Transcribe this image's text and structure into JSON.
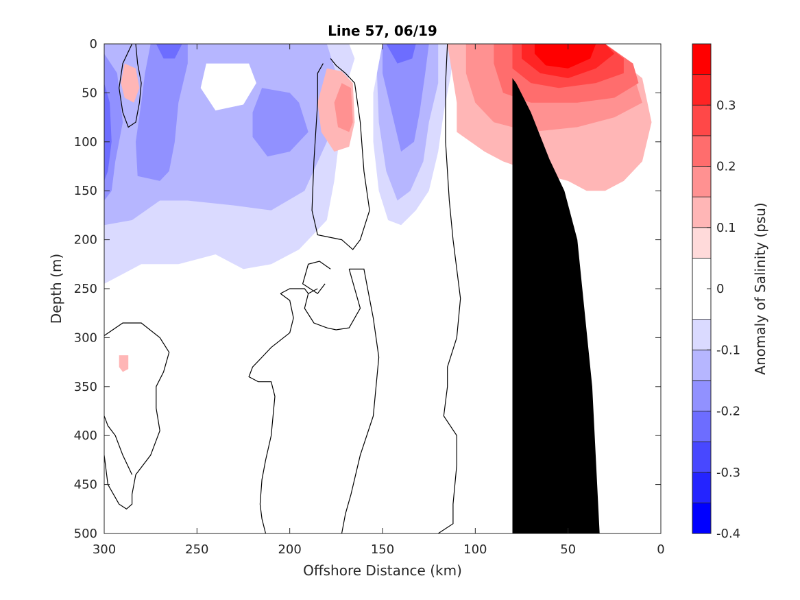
{
  "chart_data": {
    "type": "heatmap",
    "subtype": "filled-contour-section",
    "title": "Line 57, 06/19",
    "xlabel": "Offshore Distance (km)",
    "ylabel": "Depth (m)",
    "xlim": [
      300,
      0
    ],
    "x_reversed": true,
    "ylim": [
      0,
      500
    ],
    "y_reversed": true,
    "x_ticks": [
      300,
      250,
      200,
      150,
      100,
      50,
      0
    ],
    "y_ticks": [
      0,
      50,
      100,
      150,
      200,
      250,
      300,
      350,
      400,
      450,
      500
    ],
    "grid": false,
    "zero_contour_line_color": "#000000",
    "bathymetry_color": "#000000",
    "bathymetry": [
      [
        33,
        500
      ],
      [
        37,
        350
      ],
      [
        45,
        200
      ],
      [
        52,
        150
      ],
      [
        60,
        118
      ],
      [
        70,
        70
      ],
      [
        78,
        40
      ],
      [
        80,
        35
      ],
      [
        80,
        500
      ]
    ],
    "colorbar": {
      "label": "Anomaly of Salinity (psu)",
      "ticks": [
        -0.4,
        -0.3,
        -0.2,
        -0.1,
        0,
        0.1,
        0.2,
        0.3
      ],
      "levels": [
        -0.4,
        -0.35,
        -0.3,
        -0.25,
        -0.2,
        -0.15,
        -0.1,
        -0.05,
        0.05,
        0.1,
        0.15,
        0.2,
        0.25,
        0.3,
        0.35,
        0.4
      ],
      "colors": [
        "#0000ff",
        "#2424ff",
        "#4848ff",
        "#6d6dff",
        "#9191ff",
        "#b6b6ff",
        "#dadaff",
        "#ffffff",
        "#ffdada",
        "#ffb6b6",
        "#ff9191",
        "#ff6d6d",
        "#ff4848",
        "#ff2424",
        "#ff0000"
      ]
    },
    "regions": [
      {
        "value": -0.1,
        "polygon": [
          [
            300,
            0
          ],
          [
            230,
            0
          ],
          [
            200,
            0
          ],
          [
            180,
            0
          ],
          [
            168,
            0
          ],
          [
            165,
            15
          ],
          [
            170,
            45
          ],
          [
            176,
            140
          ],
          [
            180,
            180
          ],
          [
            195,
            210
          ],
          [
            210,
            225
          ],
          [
            225,
            230
          ],
          [
            240,
            215
          ],
          [
            260,
            225
          ],
          [
            280,
            225
          ],
          [
            290,
            235
          ],
          [
            300,
            245
          ]
        ]
      },
      {
        "value": -0.1,
        "polygon": [
          [
            150,
            0
          ],
          [
            112,
            0
          ],
          [
            113,
            30
          ],
          [
            117,
            70
          ],
          [
            120,
            110
          ],
          [
            125,
            150
          ],
          [
            132,
            170
          ],
          [
            140,
            185
          ],
          [
            147,
            180
          ],
          [
            152,
            150
          ],
          [
            155,
            100
          ],
          [
            155,
            50
          ]
        ]
      },
      {
        "value": -0.15,
        "polygon": [
          [
            300,
            0
          ],
          [
            180,
            0
          ],
          [
            175,
            30
          ],
          [
            180,
            100
          ],
          [
            192,
            150
          ],
          [
            210,
            170
          ],
          [
            230,
            165
          ],
          [
            255,
            160
          ],
          [
            270,
            160
          ],
          [
            285,
            180
          ],
          [
            300,
            185
          ]
        ]
      },
      {
        "value": -0.15,
        "polygon": [
          [
            150,
            0
          ],
          [
            120,
            0
          ],
          [
            120,
            40
          ],
          [
            125,
            80
          ],
          [
            128,
            120
          ],
          [
            135,
            150
          ],
          [
            142,
            160
          ],
          [
            148,
            130
          ],
          [
            152,
            80
          ],
          [
            153,
            30
          ]
        ]
      },
      {
        "value": -0.2,
        "polygon": [
          [
            275,
            0
          ],
          [
            255,
            0
          ],
          [
            255,
            20
          ],
          [
            260,
            60
          ],
          [
            262,
            100
          ],
          [
            265,
            130
          ],
          [
            270,
            140
          ],
          [
            282,
            135
          ],
          [
            283,
            100
          ],
          [
            280,
            60
          ],
          [
            278,
            30
          ]
        ]
      },
      {
        "value": -0.2,
        "polygon": [
          [
            300,
            10
          ],
          [
            293,
            30
          ],
          [
            290,
            80
          ],
          [
            294,
            120
          ],
          [
            296,
            150
          ],
          [
            300,
            160
          ]
        ]
      },
      {
        "value": -0.2,
        "polygon": [
          [
            215,
            45
          ],
          [
            200,
            50
          ],
          [
            195,
            60
          ],
          [
            190,
            90
          ],
          [
            200,
            110
          ],
          [
            212,
            115
          ],
          [
            220,
            95
          ],
          [
            220,
            70
          ]
        ]
      },
      {
        "value": -0.2,
        "polygon": [
          [
            150,
            0
          ],
          [
            125,
            0
          ],
          [
            127,
            30
          ],
          [
            130,
            70
          ],
          [
            133,
            100
          ],
          [
            140,
            110
          ],
          [
            145,
            70
          ],
          [
            150,
            30
          ]
        ]
      },
      {
        "value": -0.25,
        "polygon": [
          [
            272,
            0
          ],
          [
            258,
            0
          ],
          [
            262,
            15
          ],
          [
            268,
            15
          ]
        ]
      },
      {
        "value": -0.25,
        "polygon": [
          [
            300,
            40
          ],
          [
            297,
            60
          ],
          [
            296,
            100
          ],
          [
            298,
            130
          ],
          [
            300,
            140
          ]
        ]
      },
      {
        "value": -0.25,
        "polygon": [
          [
            148,
            0
          ],
          [
            132,
            0
          ],
          [
            134,
            15
          ],
          [
            142,
            20
          ]
        ]
      },
      {
        "value": -0.05,
        "polygon": [
          [
            245,
            20
          ],
          [
            222,
            20
          ],
          [
            218,
            40
          ],
          [
            225,
            62
          ],
          [
            240,
            68
          ],
          [
            248,
            45
          ]
        ]
      },
      {
        "value": 0.1,
        "polygon": [
          [
            115,
            0
          ],
          [
            45,
            0
          ],
          [
            35,
            5
          ],
          [
            20,
            20
          ],
          [
            10,
            35
          ],
          [
            5,
            80
          ],
          [
            10,
            120
          ],
          [
            20,
            140
          ],
          [
            30,
            150
          ],
          [
            40,
            150
          ],
          [
            50,
            140
          ],
          [
            70,
            130
          ],
          [
            85,
            120
          ],
          [
            95,
            110
          ],
          [
            110,
            90
          ],
          [
            110,
            60
          ]
        ]
      },
      {
        "value": 0.1,
        "polygon": [
          [
            180,
            25
          ],
          [
            172,
            28
          ],
          [
            166,
            40
          ],
          [
            165,
            80
          ],
          [
            168,
            105
          ],
          [
            176,
            110
          ],
          [
            183,
            90
          ],
          [
            185,
            60
          ]
        ]
      },
      {
        "value": 0.1,
        "polygon": [
          [
            289,
            20
          ],
          [
            283,
            25
          ],
          [
            281,
            45
          ],
          [
            284,
            60
          ],
          [
            289,
            55
          ],
          [
            291,
            40
          ]
        ]
      },
      {
        "value": 0.1,
        "polygon": [
          [
            292,
            318
          ],
          [
            287,
            318
          ],
          [
            287,
            332
          ],
          [
            290,
            335
          ],
          [
            292,
            330
          ]
        ]
      },
      {
        "value": 0.15,
        "polygon": [
          [
            105,
            0
          ],
          [
            40,
            0
          ],
          [
            25,
            15
          ],
          [
            15,
            30
          ],
          [
            10,
            60
          ],
          [
            25,
            75
          ],
          [
            45,
            85
          ],
          [
            70,
            90
          ],
          [
            90,
            80
          ],
          [
            100,
            60
          ],
          [
            105,
            30
          ]
        ]
      },
      {
        "value": 0.15,
        "polygon": [
          [
            172,
            40
          ],
          [
            167,
            45
          ],
          [
            166,
            80
          ],
          [
            168,
            90
          ],
          [
            174,
            85
          ],
          [
            176,
            60
          ]
        ]
      },
      {
        "value": 0.2,
        "polygon": [
          [
            90,
            0
          ],
          [
            30,
            0
          ],
          [
            15,
            20
          ],
          [
            12,
            40
          ],
          [
            25,
            55
          ],
          [
            45,
            60
          ],
          [
            70,
            60
          ],
          [
            85,
            50
          ],
          [
            90,
            20
          ]
        ]
      },
      {
        "value": 0.25,
        "polygon": [
          [
            80,
            0
          ],
          [
            30,
            0
          ],
          [
            20,
            15
          ],
          [
            20,
            30
          ],
          [
            35,
            40
          ],
          [
            55,
            45
          ],
          [
            70,
            40
          ],
          [
            80,
            25
          ]
        ]
      },
      {
        "value": 0.3,
        "polygon": [
          [
            75,
            0
          ],
          [
            30,
            0
          ],
          [
            25,
            10
          ],
          [
            35,
            25
          ],
          [
            50,
            35
          ],
          [
            65,
            30
          ],
          [
            75,
            15
          ]
        ]
      },
      {
        "value": 0.35,
        "polygon": [
          [
            68,
            0
          ],
          [
            35,
            0
          ],
          [
            38,
            15
          ],
          [
            50,
            25
          ],
          [
            62,
            22
          ],
          [
            68,
            10
          ]
        ]
      }
    ],
    "zero_contours": [
      [
        [
          285,
          0
        ],
        [
          290,
          20
        ],
        [
          292,
          45
        ],
        [
          290,
          70
        ],
        [
          287,
          85
        ],
        [
          283,
          80
        ],
        [
          281,
          60
        ],
        [
          280,
          40
        ],
        [
          282,
          20
        ],
        [
          283,
          0
        ]
      ],
      [
        [
          178,
          15
        ],
        [
          175,
          22
        ],
        [
          170,
          30
        ],
        [
          165,
          40
        ],
        [
          162,
          80
        ],
        [
          160,
          130
        ],
        [
          157,
          170
        ],
        [
          162,
          200
        ],
        [
          166,
          210
        ],
        [
          172,
          200
        ],
        [
          185,
          195
        ],
        [
          188,
          170
        ],
        [
          187,
          120
        ],
        [
          185,
          60
        ],
        [
          185,
          30
        ],
        [
          182,
          20
        ]
      ],
      [
        [
          178,
          230
        ],
        [
          184,
          222
        ],
        [
          190,
          225
        ],
        [
          193,
          245
        ],
        [
          185,
          255
        ],
        [
          181,
          245
        ]
      ],
      [
        [
          168,
          230
        ],
        [
          160,
          230
        ],
        [
          158,
          250
        ],
        [
          155,
          280
        ],
        [
          152,
          320
        ],
        [
          155,
          380
        ],
        [
          162,
          420
        ],
        [
          167,
          460
        ],
        [
          170,
          480
        ],
        [
          172,
          500
        ]
      ],
      [
        [
          168,
          230
        ],
        [
          165,
          250
        ],
        [
          162,
          270
        ],
        [
          168,
          290
        ],
        [
          175,
          292
        ],
        [
          180,
          290
        ],
        [
          187,
          285
        ],
        [
          192,
          270
        ],
        [
          190,
          255
        ],
        [
          185,
          250
        ]
      ],
      [
        [
          205,
          255
        ],
        [
          200,
          262
        ],
        [
          198,
          280
        ],
        [
          200,
          295
        ],
        [
          210,
          310
        ],
        [
          215,
          320
        ],
        [
          220,
          330
        ],
        [
          222,
          340
        ],
        [
          217,
          345
        ],
        [
          210,
          345
        ],
        [
          208,
          360
        ],
        [
          210,
          400
        ],
        [
          213,
          425
        ],
        [
          215,
          445
        ],
        [
          216,
          470
        ],
        [
          215,
          485
        ],
        [
          213,
          500
        ]
      ],
      [
        [
          205,
          255
        ],
        [
          200,
          250
        ],
        [
          192,
          250
        ],
        [
          190,
          255
        ]
      ],
      [
        [
          115,
          0
        ],
        [
          116,
          40
        ],
        [
          116,
          100
        ],
        [
          114,
          160
        ],
        [
          112,
          200
        ],
        [
          110,
          230
        ],
        [
          108,
          260
        ],
        [
          110,
          300
        ],
        [
          115,
          330
        ],
        [
          115,
          350
        ],
        [
          117,
          380
        ],
        [
          110,
          400
        ],
        [
          110,
          430
        ],
        [
          112,
          470
        ],
        [
          112,
          490
        ],
        [
          120,
          500
        ]
      ],
      [
        [
          300,
          298
        ],
        [
          290,
          285
        ],
        [
          280,
          285
        ],
        [
          270,
          300
        ],
        [
          265,
          315
        ],
        [
          268,
          335
        ],
        [
          272,
          350
        ],
        [
          272,
          372
        ],
        [
          270,
          395
        ],
        [
          275,
          420
        ],
        [
          283,
          440
        ],
        [
          285,
          460
        ],
        [
          285,
          470
        ],
        [
          288,
          475
        ],
        [
          292,
          470
        ],
        [
          298,
          450
        ],
        [
          300,
          420
        ]
      ],
      [
        [
          300,
          380
        ],
        [
          298,
          390
        ],
        [
          294,
          400
        ],
        [
          290,
          420
        ],
        [
          285,
          440
        ]
      ]
    ]
  }
}
